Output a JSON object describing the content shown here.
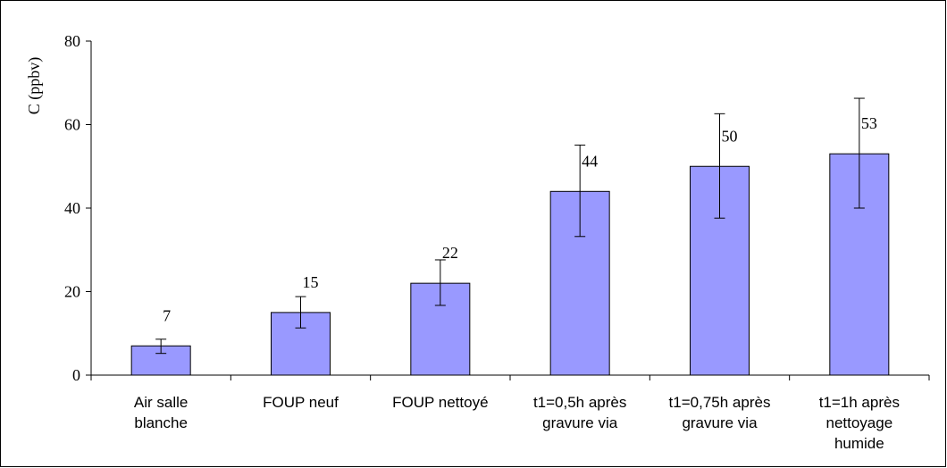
{
  "chart_data": {
    "type": "bar",
    "title": "",
    "xlabel": "",
    "ylabel": "C (ppbv)",
    "ylim": [
      0,
      80
    ],
    "yticks": [
      0,
      20,
      40,
      60,
      80
    ],
    "grid": false,
    "legend": "none",
    "bar_color": "#9999FF",
    "categories": [
      [
        "Air salle",
        "blanche"
      ],
      [
        "FOUP neuf"
      ],
      [
        "FOUP nettoyé"
      ],
      [
        "t1=0,5h après",
        "gravure via"
      ],
      [
        "t1=0,75h après",
        "gravure via"
      ],
      [
        "t1=1h après",
        "nettoyage",
        "humide"
      ]
    ],
    "values": [
      7,
      15,
      22,
      44,
      50,
      53
    ],
    "data_labels": [
      "7",
      "15",
      "22",
      "44",
      "50",
      "53"
    ],
    "error_low": [
      5.2,
      11.3,
      16.7,
      33.2,
      37.6,
      40.0
    ],
    "error_high": [
      8.6,
      18.8,
      27.6,
      55.1,
      62.6,
      66.3
    ]
  }
}
